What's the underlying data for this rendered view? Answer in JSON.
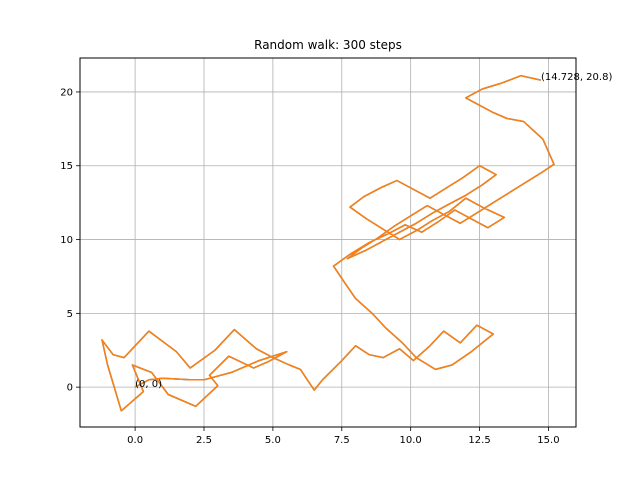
{
  "chart_data": {
    "type": "line",
    "title": "Random walk: 300 steps",
    "xlabel": "",
    "ylabel": "",
    "xlim": [
      -2.0,
      16.0
    ],
    "ylim": [
      -2.7,
      22.3
    ],
    "xticks": [
      0.0,
      2.5,
      5.0,
      7.5,
      10.0,
      12.5,
      15.0
    ],
    "xtick_labels": [
      "0.0",
      "2.5",
      "5.0",
      "7.5",
      "10.0",
      "12.5",
      "15.0"
    ],
    "yticks": [
      0,
      5,
      10,
      15,
      20
    ],
    "ytick_labels": [
      "0",
      "5",
      "10",
      "15",
      "20"
    ],
    "grid": true,
    "colors": [
      "#1f77b4",
      "#ff7f0e"
    ],
    "annotations": [
      {
        "text": "(0, 0)",
        "x": 0,
        "y": 0
      },
      {
        "text": "(14.728, 20.8)",
        "x": 14.728,
        "y": 20.8
      }
    ],
    "series": [
      {
        "values_note": "walk path",
        "x": [
          0,
          0.5,
          1.0,
          2.0,
          2.5,
          3.5,
          4.5,
          5.5,
          4.8,
          4.3,
          3.4,
          2.7,
          3.0,
          2.2,
          1.2,
          0.6,
          -0.1,
          0.3,
          -0.5,
          -1.0,
          -1.2,
          -0.8,
          -0.4,
          0.5,
          1.5,
          2.0,
          2.9,
          3.6,
          4.4,
          5.0,
          5.6,
          6.0,
          6.5,
          6.8,
          7.5,
          8.0,
          8.5,
          9.0,
          9.6,
          10.1,
          10.7,
          11.2,
          11.8,
          12.4,
          13.0,
          12.2,
          11.5,
          10.9,
          10.2,
          9.7,
          9.1,
          8.6,
          8.0,
          7.6,
          7.2,
          7.8,
          8.5,
          9.2,
          9.8,
          10.4,
          11.0,
          11.6,
          12.2,
          12.8,
          13.4,
          12.7,
          12.0,
          11.4,
          10.8,
          10.2,
          9.6,
          9.0,
          8.4,
          7.8,
          8.3,
          8.9,
          9.5,
          10.1,
          10.7,
          11.3,
          11.9,
          12.5,
          13.1,
          12.6,
          12.0,
          11.4,
          10.8,
          10.2,
          9.6,
          9.0,
          8.4,
          7.7,
          8.2,
          8.8,
          9.4,
          10.0,
          10.6,
          11.2,
          11.8,
          12.4,
          13.0,
          13.6,
          14.2,
          14.8,
          15.2,
          14.8,
          14.1,
          13.5,
          13.0,
          12.3,
          12.0,
          12.6,
          13.3,
          14.0,
          14.728
        ],
        "y": [
          0,
          0.5,
          0.6,
          0.5,
          0.5,
          1.0,
          1.8,
          2.4,
          1.7,
          1.3,
          2.1,
          0.8,
          0.1,
          -1.3,
          -0.5,
          1.0,
          1.5,
          -0.3,
          -1.6,
          1.5,
          3.2,
          2.2,
          2.0,
          3.8,
          2.4,
          1.3,
          2.5,
          3.9,
          2.6,
          2.0,
          1.5,
          1.2,
          -0.2,
          0.5,
          1.8,
          2.8,
          2.2,
          2.0,
          2.6,
          1.8,
          2.8,
          3.8,
          3.0,
          4.2,
          3.6,
          2.4,
          1.5,
          1.2,
          2.0,
          3.0,
          4.0,
          5.0,
          6.0,
          7.1,
          8.2,
          9.0,
          9.8,
          10.4,
          11.0,
          10.5,
          11.2,
          12.0,
          11.4,
          10.8,
          11.5,
          12.1,
          12.8,
          11.9,
          11.3,
          10.6,
          10.0,
          10.7,
          11.4,
          12.2,
          12.9,
          13.5,
          14.0,
          13.4,
          12.8,
          13.5,
          14.2,
          15.0,
          14.4,
          13.7,
          13.0,
          12.4,
          11.8,
          11.1,
          10.5,
          9.9,
          9.3,
          8.7,
          9.4,
          10.1,
          10.9,
          11.6,
          12.3,
          11.7,
          11.1,
          11.8,
          12.5,
          13.2,
          13.9,
          14.6,
          15.1,
          16.8,
          18.0,
          18.2,
          18.6,
          19.3,
          19.6,
          20.2,
          20.6,
          21.1,
          20.8
        ]
      }
    ]
  }
}
